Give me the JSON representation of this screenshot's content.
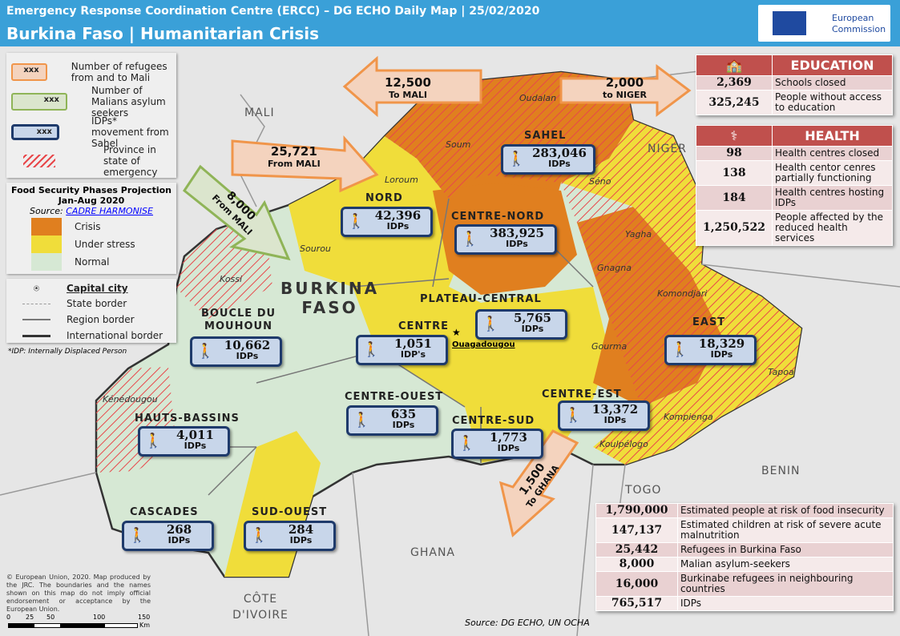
{
  "header": {
    "title": "Emergency Response Coordination Centre (ERCC) – DG ECHO Daily Map | 25/02/2020",
    "subtitle": "Burkina Faso | Humanitarian Crisis",
    "logo": "European Commission"
  },
  "colors": {
    "header": "#3aa0d8",
    "crisis": "#e07f1f",
    "under_stress": "#f0dd3a",
    "normal": "#d6e8d4",
    "table_header": "#c0504d",
    "idp_box": "#c8d6ea"
  },
  "legend": {
    "symbols": [
      {
        "icon": "refugee-arrow-orange",
        "sample": "xxx",
        "label": "Number of refugees from and to Mali"
      },
      {
        "icon": "refugee-arrow-green",
        "sample": "xxx",
        "label": "Number of Malians asylum seekers"
      },
      {
        "icon": "idp-box-blue",
        "sample": "xxx",
        "label": "IDPs* movement from Sahel"
      },
      {
        "icon": "hatch-red",
        "label": "Province in state of emergency"
      }
    ],
    "food_title": "Food Security Phases Projection",
    "food_period": "Jan-Aug 2020",
    "source_label": "Source:",
    "source_link": "CADRE HARMONISE",
    "phases": [
      {
        "label": "Crisis",
        "color": "#e07f1f"
      },
      {
        "label": "Under stress",
        "color": "#f0dd3a"
      },
      {
        "label": "Normal",
        "color": "#d6e8d4"
      }
    ],
    "lines": [
      {
        "label": "Capital city"
      },
      {
        "label": "State border"
      },
      {
        "label": "Region border"
      },
      {
        "label": "International border"
      }
    ],
    "footnote": "*IDP: Internally Displaced Person"
  },
  "countries": [
    "MALI",
    "NIGER",
    "BENIN",
    "TOGO",
    "GHANA",
    "CÔTE D'IVOIRE"
  ],
  "country_main": [
    "BURKINA",
    "FASO"
  ],
  "provinces": [
    "Oudalan",
    "Soum",
    "Loroum",
    "Séno",
    "Yagha",
    "Gnagna",
    "Komondjari",
    "Gourma",
    "Tapoa",
    "Kompienga",
    "Koulpélogo",
    "Sourou",
    "Kossi",
    "Kénédougou"
  ],
  "capital": "Ouagadougou",
  "regions": [
    "SAHEL",
    "NORD",
    "CENTRE-NORD",
    "PLATEAU-CENTRAL",
    "BOUCLE DU MOUHOUN",
    "CENTRE",
    "EAST",
    "CENTRE-OUEST",
    "CENTRE-EST",
    "CENTRE-SUD",
    "HAUTS-BASSINS",
    "CASCADES",
    "SUD-OUEST"
  ],
  "idps": [
    {
      "n": "283,046",
      "l": "IDPs"
    },
    {
      "n": "42,396",
      "l": "IDPs"
    },
    {
      "n": "383,925",
      "l": "IDPs"
    },
    {
      "n": "5,765",
      "l": "IDPs"
    },
    {
      "n": "10,662",
      "l": "IDPs"
    },
    {
      "n": "1,051",
      "l": "IDP's"
    },
    {
      "n": "18,329",
      "l": "IDPs"
    },
    {
      "n": "635",
      "l": "IDPs"
    },
    {
      "n": "13,372",
      "l": "IDPs"
    },
    {
      "n": "1,773",
      "l": "IDPs"
    },
    {
      "n": "4,011",
      "l": "IDPs"
    },
    {
      "n": "268",
      "l": "IDPs"
    },
    {
      "n": "284",
      "l": "IDPs"
    }
  ],
  "arrows": [
    {
      "n": "12,500",
      "to": "To",
      "place": "MALI"
    },
    {
      "n": "2,000",
      "to": "to",
      "place": "NIGER"
    },
    {
      "n": "25,721",
      "to": "From",
      "place": "MALI"
    },
    {
      "n": "8,000",
      "to": "From",
      "place": "MALI"
    },
    {
      "n": "1,500",
      "to": "To",
      "place": "GHANA"
    }
  ],
  "education": {
    "title": "EDUCATION",
    "rows": [
      {
        "n": "2,369",
        "l": "Schools closed"
      },
      {
        "n": "325,245",
        "l": "People without access to education"
      }
    ]
  },
  "health": {
    "title": "HEALTH",
    "rows": [
      {
        "n": "98",
        "l": "Health centres closed"
      },
      {
        "n": "138",
        "l": "Health centor cenres partially functioning"
      },
      {
        "n": "184",
        "l": "Health centres hosting IDPs"
      },
      {
        "n": "1,250,522",
        "l": "People affected by the reduced health services"
      }
    ]
  },
  "summary": [
    {
      "n": "1,790,000",
      "l": "Estimated people at risk of food insecurity"
    },
    {
      "n": "147,137",
      "l": "Estimated children at risk of severe acute malnutrition"
    },
    {
      "n": "25,442",
      "l": "Refugees in Burkina Faso"
    },
    {
      "n": "8,000",
      "l": "Malian asylum-seekers"
    },
    {
      "n": "16,000",
      "l": "Burkinabe refugees in neighbouring countries"
    },
    {
      "n": "765,517",
      "l": "IDPs"
    }
  ],
  "copyright": "© European Union, 2020. Map produced by the JRC. The boundaries and the names shown on this map do not imply official endorsement or acceptance by the European Union.",
  "scale": {
    "ticks": [
      "0",
      "25",
      "50",
      "100",
      "150"
    ],
    "unit": "Km"
  },
  "source": "Source: DG ECHO, UN OCHA"
}
